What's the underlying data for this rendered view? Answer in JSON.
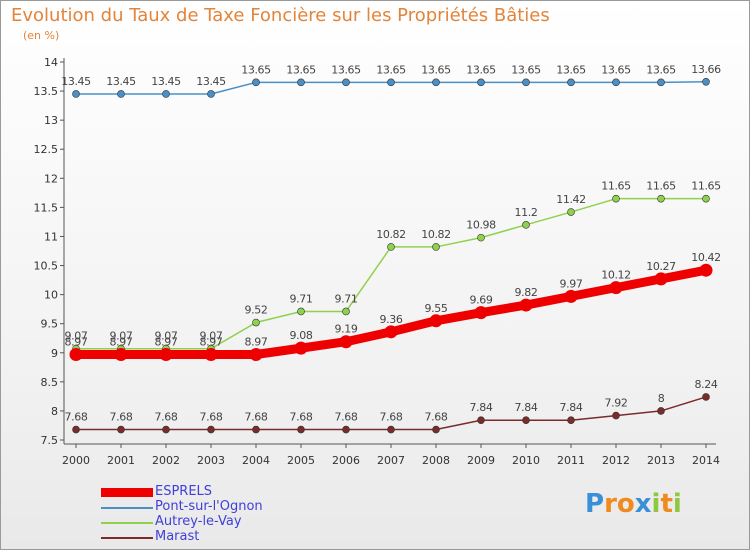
{
  "header": {
    "title": "Evolution du Taux de Taxe Foncière sur les Propriétés Bâties",
    "unit": "(en %)"
  },
  "chart_data": {
    "type": "line",
    "title": "Evolution du Taux de Taxe Foncière sur les Propriétés Bâties",
    "ylabel": "(en %)",
    "xlabel": "",
    "x": [
      "2000",
      "2001",
      "2002",
      "2003",
      "2004",
      "2005",
      "2006",
      "2007",
      "2008",
      "2009",
      "2010",
      "2011",
      "2012",
      "2013",
      "2014"
    ],
    "ylim": [
      7.5,
      14
    ],
    "yticks": [
      "7.5",
      "8",
      "8.5",
      "9",
      "9.5",
      "10",
      "10.5",
      "11",
      "11.5",
      "12",
      "12.5",
      "13",
      "13.5",
      "14"
    ],
    "grid": false,
    "legend_position": "bottom-left",
    "series": [
      {
        "name": "ESPRELS",
        "color": "#ee0000",
        "values": [
          8.97,
          8.97,
          8.97,
          8.97,
          8.97,
          9.08,
          9.19,
          9.36,
          9.55,
          9.69,
          9.82,
          9.97,
          10.12,
          10.27,
          10.42
        ],
        "labels": [
          "8.97",
          "8.97",
          "8.97",
          "8.97",
          "8.97",
          "9.08",
          "9.19",
          "9.36",
          "9.55",
          "9.69",
          "9.82",
          "9.97",
          "10.12",
          "10.27",
          "10.42"
        ]
      },
      {
        "name": "Pont-sur-l'Ognon",
        "color": "#4a90c6",
        "values": [
          13.45,
          13.45,
          13.45,
          13.45,
          13.65,
          13.65,
          13.65,
          13.65,
          13.65,
          13.65,
          13.65,
          13.65,
          13.65,
          13.65,
          13.66
        ],
        "labels": [
          "13.45",
          "13.45",
          "13.45",
          "13.45",
          "13.65",
          "13.65",
          "13.65",
          "13.65",
          "13.65",
          "13.65",
          "13.65",
          "13.65",
          "13.65",
          "13.65",
          "13.66"
        ]
      },
      {
        "name": "Autrey-le-Vay",
        "color": "#8fd14f",
        "values": [
          9.07,
          9.07,
          9.07,
          9.07,
          9.52,
          9.71,
          9.71,
          10.82,
          10.82,
          10.98,
          11.2,
          11.42,
          11.65,
          11.65,
          11.65
        ],
        "labels": [
          "9.07",
          "9.07",
          "9.07",
          "9.07",
          "9.52",
          "9.71",
          "9.71",
          "10.82",
          "10.82",
          "10.98",
          "11.2",
          "11.42",
          "11.65",
          "11.65",
          "11.65"
        ]
      },
      {
        "name": "Marast",
        "color": "#7a2b2b",
        "values": [
          7.68,
          7.68,
          7.68,
          7.68,
          7.68,
          7.68,
          7.68,
          7.68,
          7.68,
          7.84,
          7.84,
          7.84,
          7.92,
          8,
          8.24
        ],
        "labels": [
          "7.68",
          "7.68",
          "7.68",
          "7.68",
          "7.68",
          "7.68",
          "7.68",
          "7.68",
          "7.68",
          "7.84",
          "7.84",
          "7.84",
          "7.92",
          "8",
          "8.24"
        ]
      }
    ]
  },
  "legend": {
    "items": [
      {
        "label": "ESPRELS",
        "color": "#ee0000"
      },
      {
        "label": "Pont-sur-l'Ognon",
        "color": "#4a90c6"
      },
      {
        "label": "Autrey-le-Vay",
        "color": "#8fd14f"
      },
      {
        "label": "Marast",
        "color": "#7a2b2b"
      }
    ]
  },
  "logo": {
    "text": "Proxiti",
    "letters": [
      "P",
      "r",
      "o",
      "x",
      "i",
      "t",
      "i"
    ],
    "colors": [
      "#3a8fd6",
      "#f08a1c",
      "#f08a1c",
      "#3a8fd6",
      "#8fc740",
      "#f08a1c",
      "#8fc740"
    ]
  }
}
